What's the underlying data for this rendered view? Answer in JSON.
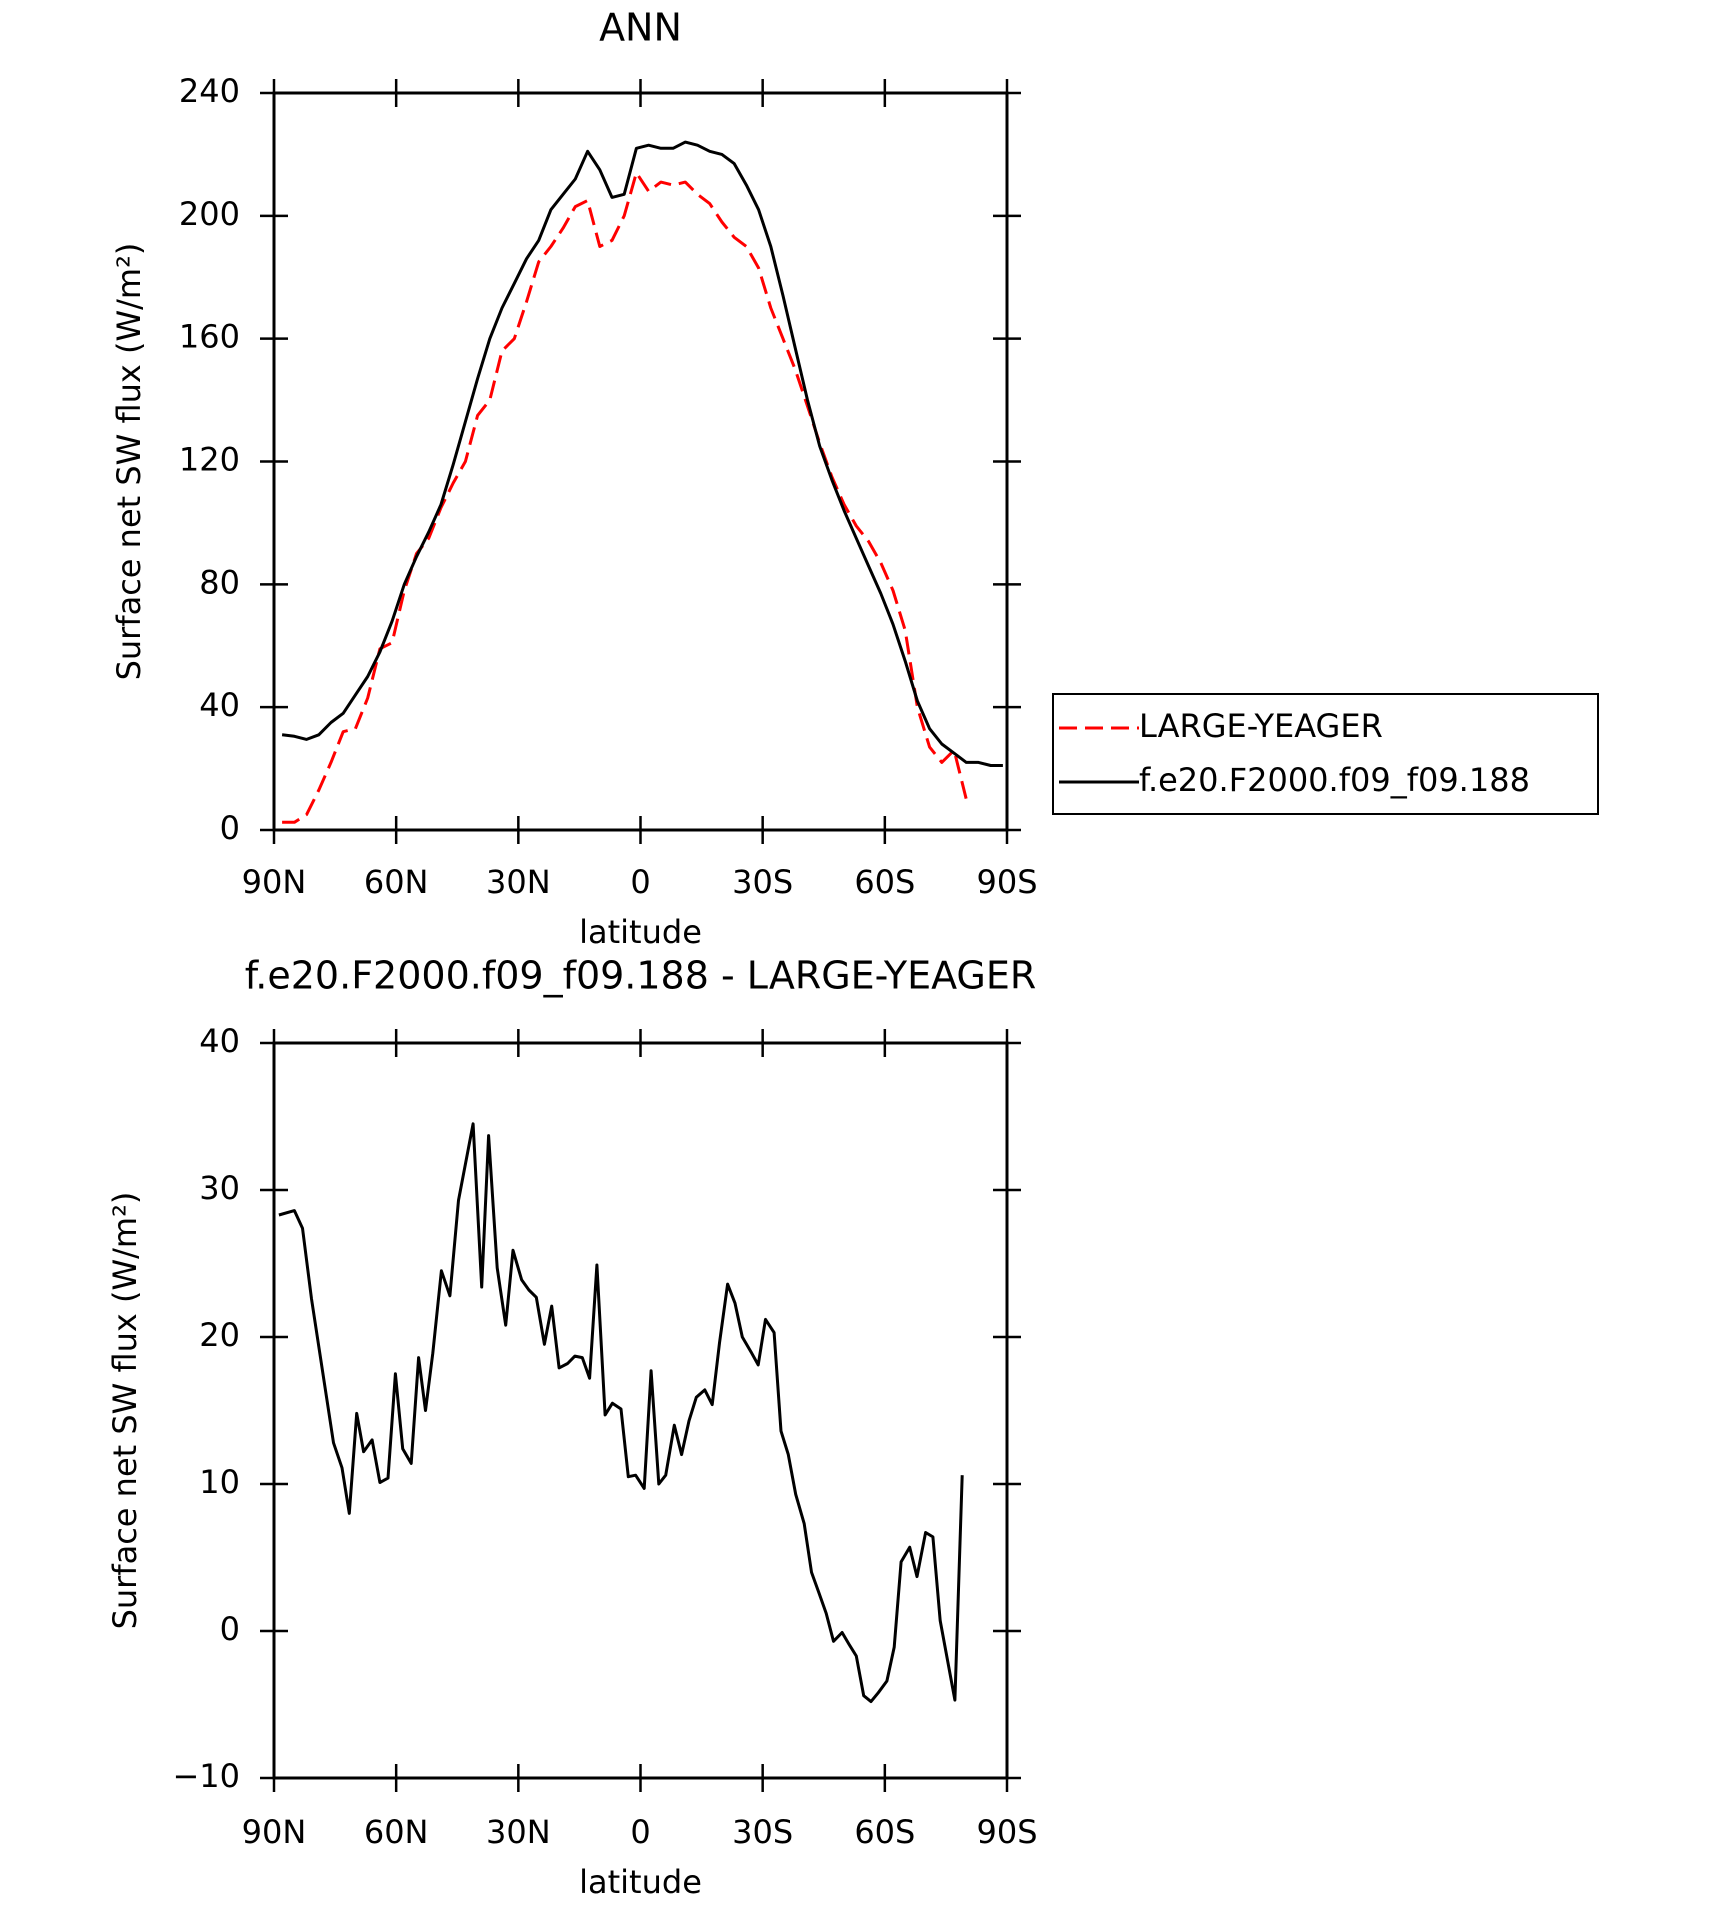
{
  "chart_data": [
    {
      "type": "line",
      "title": "ANN",
      "xlabel": "latitude",
      "ylabel": "Surface net SW flux (W/m²)",
      "x": [
        88,
        85,
        82,
        79,
        76,
        73,
        70,
        67,
        64,
        61,
        58,
        55,
        52,
        49,
        46,
        43,
        40,
        37,
        34,
        31,
        28,
        25,
        22,
        19,
        16,
        13,
        10,
        7,
        4,
        1,
        -2,
        -5,
        -8,
        -11,
        -14,
        -17,
        -20,
        -23,
        -26,
        -29,
        -32,
        -35,
        -38,
        -41,
        -44,
        -47,
        -50,
        -53,
        -56,
        -59,
        -62,
        -65,
        -68,
        -71,
        -74,
        -77,
        -80,
        -83,
        -86,
        -89
      ],
      "series": [
        {
          "name": "LARGE-YEAGER",
          "color": "#ff0000",
          "style": "dashed",
          "values": [
            2.5,
            2.5,
            5,
            13,
            22,
            32,
            33,
            43,
            59,
            61,
            78,
            90,
            95,
            105,
            113,
            120,
            135,
            140,
            156,
            160,
            172,
            185,
            190,
            196,
            203,
            205,
            190,
            192,
            200,
            214,
            208,
            211,
            210,
            211,
            207,
            204,
            198,
            193,
            190,
            183,
            170,
            160,
            150,
            138,
            126,
            115,
            106,
            99,
            94,
            87,
            78,
            65,
            40,
            27,
            22,
            26,
            10,
            null,
            null,
            null
          ]
        },
        {
          "name": "f.e20.F2000.f09_f09.188",
          "color": "#000000",
          "style": "solid",
          "values": [
            31,
            30.5,
            29.5,
            31,
            35,
            38,
            44,
            50,
            58,
            68,
            80,
            89,
            97,
            106,
            119,
            133,
            147,
            160,
            170,
            178,
            186,
            192,
            202,
            207,
            212,
            221,
            215,
            206,
            207,
            222,
            223,
            222,
            222,
            224,
            223,
            221,
            220,
            217,
            210,
            202,
            190,
            174,
            157,
            140,
            125,
            114,
            104,
            95,
            86,
            77,
            67,
            55,
            42,
            33,
            28,
            25,
            22,
            22,
            21,
            21
          ]
        }
      ],
      "xlim": [
        90,
        -90
      ],
      "xticks": [
        {
          "value": 90,
          "label": "90N"
        },
        {
          "value": 60,
          "label": "60N"
        },
        {
          "value": 30,
          "label": "30N"
        },
        0,
        {
          "value": -30,
          "label": "30S"
        },
        {
          "value": -60,
          "label": "60S"
        },
        {
          "value": -90,
          "label": "90S"
        }
      ],
      "ylim": [
        0,
        240
      ],
      "yticks": [
        0,
        40,
        80,
        120,
        160,
        200,
        240
      ],
      "legend": "right"
    },
    {
      "type": "line",
      "title": "f.e20.F2000.f09_f09.188 - LARGE-YEAGER",
      "xlabel": "latitude",
      "ylabel": "Surface net SW flux (W/m²)",
      "x": [
        88.8,
        85,
        83,
        80.8,
        75.4,
        73.3,
        71.5,
        69.7,
        68,
        65.9,
        64,
        62,
        60.2,
        58.4,
        56.3,
        54.5,
        52.8,
        51,
        48.9,
        46.8,
        44.7,
        41.1,
        39,
        37.3,
        35.2,
        33.1,
        31.3,
        29.2,
        27.4,
        25.6,
        23.6,
        21.8,
        20,
        17.9,
        16.1,
        14.3,
        12.5,
        10.7,
        8.7,
        6.9,
        4.8,
        3,
        1.2,
        -0.9,
        -2.6,
        -4.5,
        -6.2,
        -8.3,
        -10.1,
        -11.9,
        -13.7,
        -15.8,
        -17.6,
        -19.4,
        -21.4,
        -23.2,
        -25,
        -27.1,
        -28.9,
        -30.7,
        -32.8,
        -34.5,
        -36.3,
        -38.1,
        -40.2,
        -42,
        -43.8,
        -45.6,
        -47.4,
        -49.5,
        -51.2,
        -53,
        -54.8,
        -56.6,
        -58.4,
        -60.5,
        -62.3,
        -64,
        -66.1,
        -67.9,
        -70,
        -71.8,
        -73.6,
        -77.2,
        -79
      ],
      "series": [
        {
          "color": "#000000",
          "style": "solid",
          "values": [
            28.3,
            28.6,
            27.4,
            22.6,
            12.8,
            11.1,
            8.0,
            14.8,
            12.2,
            13.0,
            10.1,
            10.4,
            17.5,
            12.4,
            11.4,
            18.6,
            15.0,
            18.9,
            24.5,
            22.8,
            29.3,
            34.5,
            23.4,
            33.7,
            24.7,
            20.8,
            25.9,
            23.9,
            23.2,
            22.7,
            19.5,
            22.1,
            17.9,
            18.2,
            18.7,
            18.6,
            17.2,
            24.9,
            14.7,
            15.5,
            15.1,
            10.5,
            10.6,
            9.7,
            17.7,
            10.0,
            10.6,
            14.0,
            12.0,
            14.3,
            15.9,
            16.4,
            15.4,
            19.6,
            23.6,
            22.3,
            20.0,
            19.0,
            18.1,
            21.2,
            20.3,
            13.6,
            12.0,
            9.3,
            7.3,
            4.0,
            2.6,
            1.2,
            -0.7,
            -0.1,
            -0.9,
            -1.7,
            -4.4,
            -4.8,
            -4.2,
            -3.4,
            -1.1,
            4.7,
            5.7,
            3.7,
            6.7,
            6.4,
            0.7,
            -4.7,
            10.6
          ]
        }
      ],
      "xlim": [
        90,
        -90
      ],
      "xticks": [
        {
          "value": 90,
          "label": "90N"
        },
        {
          "value": 60,
          "label": "60N"
        },
        {
          "value": 30,
          "label": "30N"
        },
        0,
        {
          "value": -30,
          "label": "30S"
        },
        {
          "value": -60,
          "label": "60S"
        },
        {
          "value": -90,
          "label": "90S"
        }
      ],
      "ylim": [
        -10,
        40
      ],
      "yticks": [
        {
          "value": -10,
          "label": "−10"
        },
        0,
        10,
        20,
        30,
        40
      ]
    }
  ]
}
